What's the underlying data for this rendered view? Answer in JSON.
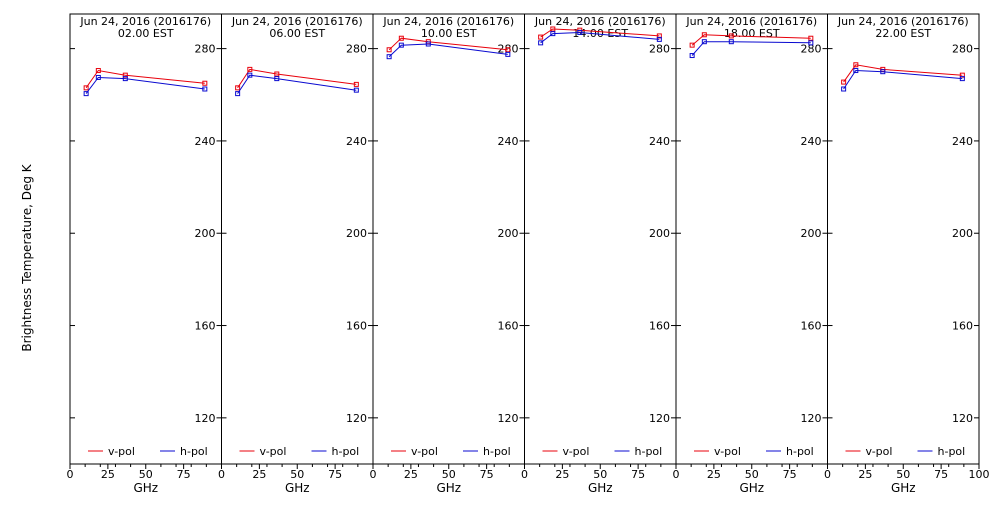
{
  "chart_data": {
    "type": "line",
    "ylabel": "Brightness Temperature, Deg K",
    "xlabel": "GHz",
    "xlim": [
      0,
      100
    ],
    "ylim": [
      100,
      295
    ],
    "xticks": [
      0,
      25,
      50,
      75,
      100
    ],
    "xticks_minor": [
      10,
      20,
      30,
      40,
      60,
      70,
      80,
      90
    ],
    "yticks": [
      120,
      160,
      200,
      240,
      280
    ],
    "legend": [
      "v-pol",
      "h-pol"
    ],
    "colors": {
      "v-pol": "#e8000b",
      "h-pol": "#0a0ad0"
    },
    "x": [
      10.65,
      18.7,
      36.5,
      89.0
    ],
    "panels": [
      {
        "title": "Jun 24, 2016 (2016176)",
        "subtitle": "02.00 EST",
        "series": [
          {
            "name": "v-pol",
            "values": [
              263.0,
              270.5,
              268.5,
              265.0
            ]
          },
          {
            "name": "h-pol",
            "values": [
              260.5,
              267.5,
              267.0,
              262.5
            ]
          }
        ]
      },
      {
        "title": "Jun 24, 2016 (2016176)",
        "subtitle": "06.00 EST",
        "series": [
          {
            "name": "v-pol",
            "values": [
              263.0,
              271.0,
              269.0,
              264.5
            ]
          },
          {
            "name": "h-pol",
            "values": [
              260.5,
              268.5,
              267.0,
              262.0
            ]
          }
        ]
      },
      {
        "title": "Jun 24, 2016 (2016176)",
        "subtitle": "10.00 EST",
        "series": [
          {
            "name": "v-pol",
            "values": [
              279.5,
              284.5,
              283.0,
              279.5
            ]
          },
          {
            "name": "h-pol",
            "values": [
              276.5,
              281.5,
              282.0,
              277.5
            ]
          }
        ]
      },
      {
        "title": "Jun 24, 2016 (2016176)",
        "subtitle": "14.00 EST",
        "series": [
          {
            "name": "v-pol",
            "values": [
              285.0,
              288.5,
              288.0,
              285.5
            ]
          },
          {
            "name": "h-pol",
            "values": [
              282.5,
              286.5,
              287.0,
              284.0
            ]
          }
        ]
      },
      {
        "title": "Jun 24, 2016 (2016176)",
        "subtitle": "18.00 EST",
        "series": [
          {
            "name": "v-pol",
            "values": [
              281.5,
              286.0,
              285.5,
              284.5
            ]
          },
          {
            "name": "h-pol",
            "values": [
              277.0,
              283.0,
              283.0,
              282.5
            ]
          }
        ]
      },
      {
        "title": "Jun 24, 2016 (2016176)",
        "subtitle": "22.00 EST",
        "series": [
          {
            "name": "v-pol",
            "values": [
              265.5,
              273.0,
              271.0,
              268.5
            ]
          },
          {
            "name": "h-pol",
            "values": [
              262.5,
              270.5,
              270.0,
              267.0
            ]
          }
        ]
      }
    ]
  }
}
